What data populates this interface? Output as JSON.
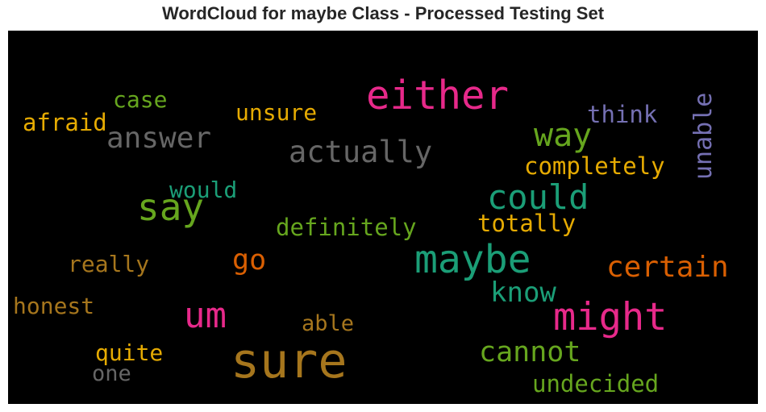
{
  "chart_data": {
    "type": "wordcloud",
    "title": "WordCloud for maybe Class - Processed Testing Set",
    "words": [
      {
        "text": "sure",
        "weight": 1.0,
        "color": "#a6761d"
      },
      {
        "text": "either",
        "weight": 0.78,
        "color": "#e7298a"
      },
      {
        "text": "maybe",
        "weight": 0.76,
        "color": "#1b9e77"
      },
      {
        "text": "might",
        "weight": 0.72,
        "color": "#e7298a"
      },
      {
        "text": "say",
        "weight": 0.7,
        "color": "#66a61e"
      },
      {
        "text": "um",
        "weight": 0.66,
        "color": "#e7298a"
      },
      {
        "text": "could",
        "weight": 0.62,
        "color": "#1b9e77"
      },
      {
        "text": "way",
        "weight": 0.58,
        "color": "#66a61e"
      },
      {
        "text": "actually",
        "weight": 0.52,
        "color": "#666666"
      },
      {
        "text": "answer",
        "weight": 0.5,
        "color": "#666666"
      },
      {
        "text": "certain",
        "weight": 0.5,
        "color": "#d95f02"
      },
      {
        "text": "cannot",
        "weight": 0.48,
        "color": "#66a61e"
      },
      {
        "text": "go",
        "weight": 0.48,
        "color": "#d95f02"
      },
      {
        "text": "know",
        "weight": 0.46,
        "color": "#1b9e77"
      },
      {
        "text": "unable",
        "weight": 0.38,
        "color": "#7570b3"
      },
      {
        "text": "completely",
        "weight": 0.36,
        "color": "#e6ab02"
      },
      {
        "text": "definitely",
        "weight": 0.36,
        "color": "#66a61e"
      },
      {
        "text": "totally",
        "weight": 0.36,
        "color": "#e6ab02"
      },
      {
        "text": "think",
        "weight": 0.36,
        "color": "#7570b3"
      },
      {
        "text": "undecided",
        "weight": 0.36,
        "color": "#66a61e"
      },
      {
        "text": "afraid",
        "weight": 0.36,
        "color": "#e6ab02"
      },
      {
        "text": "would",
        "weight": 0.34,
        "color": "#1b9e77"
      },
      {
        "text": "unsure",
        "weight": 0.34,
        "color": "#e6ab02"
      },
      {
        "text": "case",
        "weight": 0.34,
        "color": "#66a61e"
      },
      {
        "text": "really",
        "weight": 0.34,
        "color": "#a6761d"
      },
      {
        "text": "honest",
        "weight": 0.34,
        "color": "#a6761d"
      },
      {
        "text": "quite",
        "weight": 0.34,
        "color": "#e6ab02"
      },
      {
        "text": "able",
        "weight": 0.32,
        "color": "#a6761d"
      },
      {
        "text": "one",
        "weight": 0.32,
        "color": "#666666"
      }
    ],
    "background": "#000000"
  }
}
